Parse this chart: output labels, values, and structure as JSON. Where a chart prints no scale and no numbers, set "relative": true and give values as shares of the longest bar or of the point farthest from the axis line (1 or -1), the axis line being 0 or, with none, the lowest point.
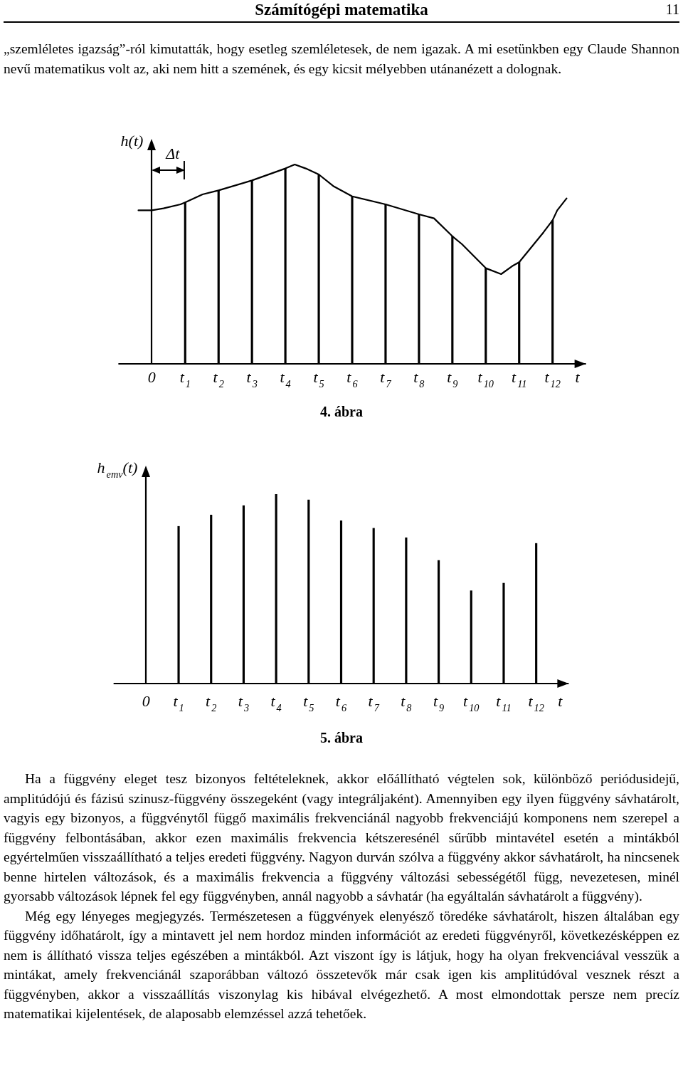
{
  "chart_data": [
    {
      "type": "line",
      "title": "4. ábra",
      "ylabel": "h(t)",
      "xlabel": "t",
      "relative": true,
      "tick_labels": "x",
      "xlim": [
        -1,
        13
      ],
      "xticks": [
        {
          "value": 0,
          "label": "0"
        },
        {
          "value": 1,
          "label": "t$_{1}$"
        },
        {
          "value": 2,
          "label": "t$_{2}$"
        },
        {
          "value": 3,
          "label": "t$_{3}$"
        },
        {
          "value": 4,
          "label": "t$_{4}$"
        },
        {
          "value": 5,
          "label": "t$_{5}$"
        },
        {
          "value": 6,
          "label": "t$_{6}$"
        },
        {
          "value": 7,
          "label": "t$_{7}$"
        },
        {
          "value": 8,
          "label": "t$_{8}$"
        },
        {
          "value": 9,
          "label": "t$_{9}$"
        },
        {
          "value": 10,
          "label": "t$_{10}$"
        },
        {
          "value": 11,
          "label": "t$_{11}$"
        },
        {
          "value": 12,
          "label": "t$_{12}$"
        }
      ],
      "series": [
        {
          "color": "#000000",
          "x": [
            -0.4,
            0,
            0.35,
            0.86,
            1,
            1.52,
            2,
            3,
            4,
            4.28,
            4.61,
            5,
            5.45,
            6,
            7,
            8,
            8.45,
            9,
            9.29,
            10,
            10.46,
            10.79,
            11,
            11.73,
            12,
            12.14,
            12.42
          ],
          "values": [
            0.77,
            0.77,
            0.78,
            0.8,
            0.81,
            0.85,
            0.87,
            0.92,
            0.98,
            1,
            0.98,
            0.95,
            0.89,
            0.84,
            0.8,
            0.75,
            0.73,
            0.64,
            0.6,
            0.48,
            0.45,
            0.49,
            0.51,
            0.66,
            0.72,
            0.77,
            0.83
          ]
        },
        {
          "type": "bar",
          "color": "#000000",
          "x": [
            1,
            2,
            3,
            4,
            5,
            6,
            7,
            8,
            9,
            10,
            11,
            12
          ],
          "values": [
            0.81,
            0.87,
            0.92,
            0.98,
            0.95,
            0.84,
            0.8,
            0.75,
            0.64,
            0.48,
            0.51,
            0.72
          ]
        }
      ],
      "annotations": [
        "Számítógépi matematika",
        "11",
        "„szemléletes igazság”-ról kimutatták, hogy esetleg szemléletesek, de nem igazak. A mi esetünkben egy Claude Shannon nevű matematikus volt az, aki nem hitt a szemének, és egy kicsit mélyebben utánanézett a dolognak.",
        "Δt"
      ]
    },
    {
      "type": "bar",
      "title": "5. ábra",
      "ylabel": "h$_{emv}$(t)",
      "xlabel": "t",
      "relative": true,
      "tick_labels": "x",
      "xlim": [
        -1,
        13
      ],
      "xticks": [
        {
          "value": 0,
          "label": "0"
        },
        {
          "value": 1,
          "label": "t$_{1}$"
        },
        {
          "value": 2,
          "label": "t$_{2}$"
        },
        {
          "value": 3,
          "label": "t$_{3}$"
        },
        {
          "value": 4,
          "label": "t$_{4}$"
        },
        {
          "value": 5,
          "label": "t$_{5}$"
        },
        {
          "value": 6,
          "label": "t$_{6}$"
        },
        {
          "value": 7,
          "label": "t$_{7}$"
        },
        {
          "value": 8,
          "label": "t$_{8}$"
        },
        {
          "value": 9,
          "label": "t$_{9}$"
        },
        {
          "value": 10,
          "label": "t$_{10}$"
        },
        {
          "value": 11,
          "label": "t$_{11}$"
        },
        {
          "value": 12,
          "label": "t$_{12}$"
        }
      ],
      "series": [
        {
          "color": "#000000",
          "x": [
            1,
            2,
            3,
            4,
            5,
            6,
            7,
            8,
            9,
            10,
            11,
            12
          ],
          "values": [
            0.83,
            0.89,
            0.94,
            1,
            0.97,
            0.86,
            0.82,
            0.77,
            0.65,
            0.49,
            0.53,
            0.74
          ]
        }
      ],
      "annotations": [
        "Ha a függvény eleget tesz bizonyos feltételeknek, akkor előállítható végtelen sok, különböző periódusidejű, amplitúdójú és fázisú szinusz-függvény összegeként (vagy integráljaként). Amennyiben egy ilyen függvény sávhatárolt, vagyis egy bizonyos, a függvénytől függő maximális frekvenciánál nagyobb frekvenciájú komponens nem szerepel a függvény felbontásában, akkor ezen maximális frekvencia kétszeresénél sűrűbb mintavétel esetén a mintákból egyértelműen visszaállítható a teljes eredeti függvény. Nagyon durván szólva a függvény akkor sávhatárolt, ha nincsenek benne hirtelen változások, és a maximális frekvencia a függvény változási sebességétől függ, nevezetesen, minél gyorsabb változások lépnek fel egy függvényben, annál nagyobb a sávhatár (ha egyáltalán sávhatárolt a függvény).",
        "Még egy lényeges megjegyzés. Természetesen a függvények elenyésző töredéke sávhatárolt, hiszen általában egy függvény időhatárolt, így a mintavett jel nem hordoz minden információt az eredeti függvényről, következésképpen ez nem is állítható vissza teljes egészében a mintákból. Azt viszont így is látjuk, hogy ha olyan frekvenciával vesszük a mintákat, amely frekvenciánál szaporábban változó összetevők már csak igen kis amplitúdóval vesznek részt a függvényben, akkor a visszaállítás viszonylag kis hibával elvégezhető. A most elmondottak persze nem precíz matematikai kijelentések, de alaposabb elemzéssel azzá tehetőek."
      ]
    }
  ]
}
